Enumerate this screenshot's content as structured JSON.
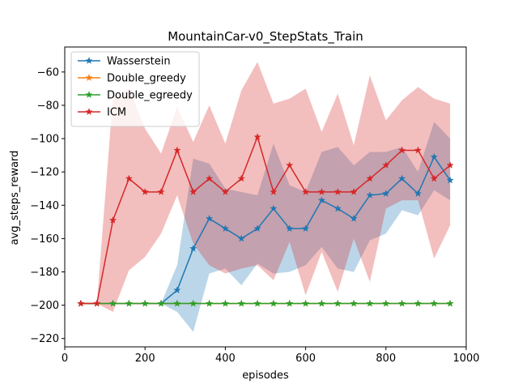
{
  "chart_data": {
    "type": "line",
    "title": "MountainCar-v0_StepStats_Train",
    "xlabel": "episodes",
    "ylabel": "avg_steps_reward",
    "xlim": [
      0,
      1000
    ],
    "ylim": [
      -225,
      -45
    ],
    "xticks": [
      0,
      200,
      400,
      600,
      800,
      1000
    ],
    "yticks": [
      -220,
      -200,
      -180,
      -160,
      -140,
      -120,
      -100,
      -80,
      -60
    ],
    "grid": false,
    "legend_position": "top-left",
    "x": [
      40,
      80,
      120,
      160,
      200,
      240,
      280,
      320,
      360,
      400,
      440,
      480,
      520,
      560,
      600,
      640,
      680,
      720,
      760,
      800,
      840,
      880,
      920,
      960
    ],
    "series": [
      {
        "name": "Wasserstein",
        "color": "#1f77b4",
        "band_color": "#9ecae9",
        "values": [
          -199,
          -199,
          -199,
          -199,
          -199,
          -199,
          -191,
          -166,
          -148,
          -154,
          -160,
          -154,
          -142,
          -154,
          -154,
          -137,
          -142,
          -148,
          -134,
          -133,
          -124,
          -133,
          -111,
          -125
        ],
        "band_low": [
          -199,
          -199,
          -199,
          -199,
          -199,
          -199,
          -204,
          -216,
          -181,
          -178,
          -188,
          -175,
          -181,
          -180,
          -176,
          -165,
          -178,
          -180,
          -161,
          -157,
          -143,
          -146,
          -131,
          -137
        ],
        "band_high": [
          -199,
          -199,
          -199,
          -199,
          -199,
          -199,
          -176,
          -112,
          -115,
          -130,
          -132,
          -134,
          -103,
          -128,
          -132,
          -108,
          -105,
          -116,
          -108,
          -108,
          -105,
          -120,
          -90,
          -100
        ]
      },
      {
        "name": "Double_greedy",
        "color": "#ff7f0e",
        "values": [
          -199,
          -199,
          -199,
          -199,
          -199,
          -199,
          -199,
          -199,
          -199,
          -199,
          -199,
          -199,
          -199,
          -199,
          -199,
          -199,
          -199,
          -199,
          -199,
          -199,
          -199,
          -199,
          -199,
          -199
        ]
      },
      {
        "name": "Double_egreedy",
        "color": "#2ca02c",
        "values": [
          -199,
          -199,
          -199,
          -199,
          -199,
          -199,
          -199,
          -199,
          -199,
          -199,
          -199,
          -199,
          -199,
          -199,
          -199,
          -199,
          -199,
          -199,
          -199,
          -199,
          -199,
          -199,
          -199,
          -199
        ]
      },
      {
        "name": "ICM",
        "color": "#d62728",
        "band_color": "#ecb0b1",
        "values": [
          -199,
          -199,
          -149,
          -124,
          -132,
          -132,
          -107,
          -132,
          -124,
          -132,
          -124,
          -99,
          -132,
          -116,
          -132,
          -132,
          -132,
          -132,
          -124,
          -116,
          -107,
          -107,
          -124,
          -116
        ],
        "band_low": [
          -199,
          -199,
          -204,
          -179,
          -171,
          -157,
          -134,
          -163,
          -176,
          -181,
          -178,
          -176,
          -185,
          -162,
          -194,
          -168,
          -192,
          -160,
          -186,
          -142,
          -137,
          -137,
          -172,
          -152
        ],
        "band_high": [
          -199,
          -199,
          -75,
          -70,
          -94,
          -109,
          -81,
          -102,
          -80,
          -103,
          -71,
          -54,
          -79,
          -76,
          -70,
          -96,
          -73,
          -104,
          -62,
          -89,
          -77,
          -69,
          -76,
          -79
        ]
      }
    ]
  }
}
